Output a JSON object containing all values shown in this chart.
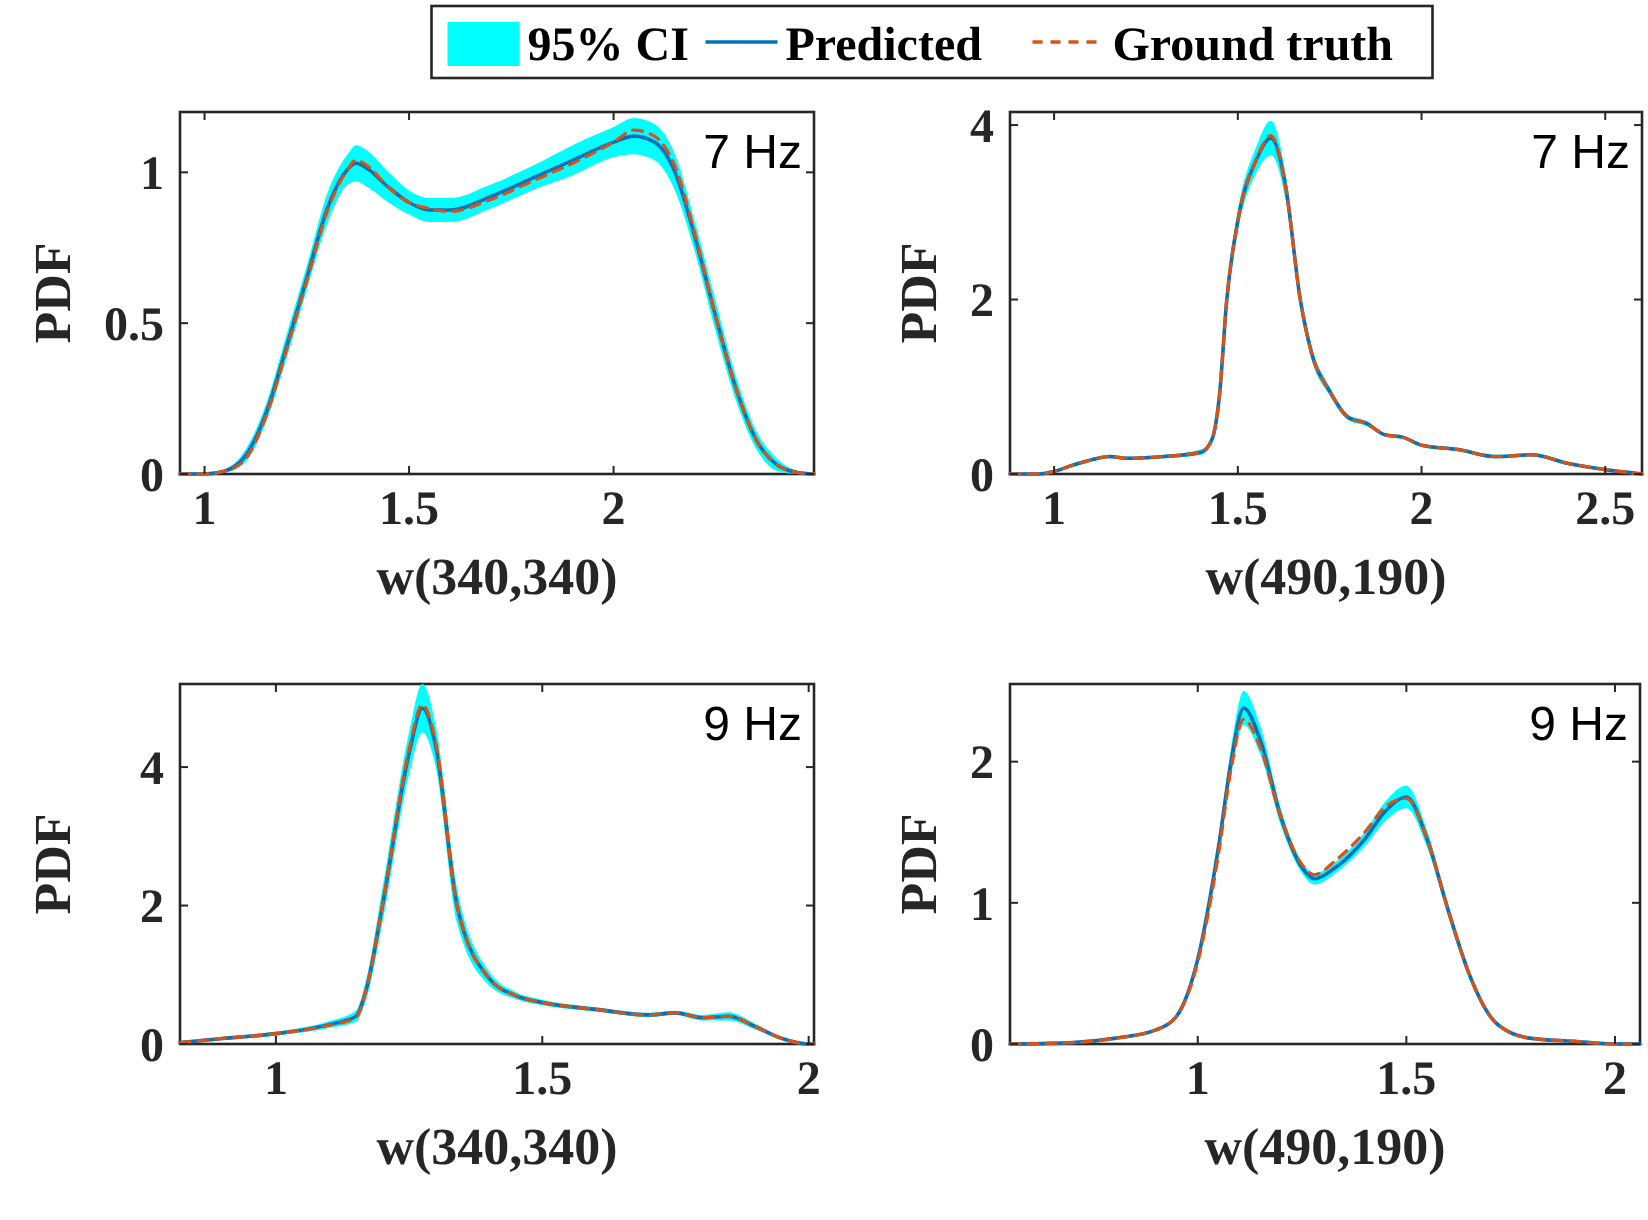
{
  "chart_data": [
    {
      "type": "line",
      "xlabel": "w(340,340)",
      "ylabel": "PDF",
      "annotations": [
        "7 Hz"
      ],
      "legend": "top",
      "legend_title": "95% CI",
      "xlim": [
        0.94,
        2.49
      ],
      "ylim": [
        0,
        1.2
      ],
      "xticks": [
        1,
        1.5,
        2
      ],
      "yticks": [
        0,
        0.5,
        1
      ],
      "x": [
        0.94,
        1.0,
        1.05,
        1.1,
        1.15,
        1.2,
        1.25,
        1.3,
        1.35,
        1.37,
        1.4,
        1.45,
        1.5,
        1.55,
        1.6,
        1.7,
        1.8,
        1.9,
        2.0,
        2.05,
        2.1,
        2.15,
        2.2,
        2.25,
        2.3,
        2.35,
        2.4,
        2.45,
        2.49
      ],
      "series": [
        {
          "name": "Predicted",
          "type": "line",
          "color": "#0072bd",
          "line_style": "solid",
          "values": [
            0,
            0,
            0.01,
            0.06,
            0.2,
            0.42,
            0.65,
            0.88,
            1.01,
            1.03,
            1.01,
            0.95,
            0.9,
            0.875,
            0.875,
            0.92,
            0.98,
            1.04,
            1.1,
            1.12,
            1.1,
            1.0,
            0.78,
            0.52,
            0.28,
            0.11,
            0.03,
            0.005,
            0
          ],
          "lower": [
            0,
            0,
            0.005,
            0.04,
            0.17,
            0.38,
            0.61,
            0.83,
            0.96,
            0.97,
            0.95,
            0.9,
            0.86,
            0.835,
            0.835,
            0.88,
            0.94,
            0.99,
            1.05,
            1.06,
            1.04,
            0.94,
            0.73,
            0.47,
            0.24,
            0.08,
            0.01,
            0,
            0
          ],
          "upper": [
            0,
            0,
            0.015,
            0.08,
            0.23,
            0.46,
            0.69,
            0.93,
            1.06,
            1.09,
            1.07,
            1.0,
            0.94,
            0.915,
            0.915,
            0.96,
            1.02,
            1.09,
            1.15,
            1.18,
            1.16,
            1.06,
            0.83,
            0.57,
            0.32,
            0.14,
            0.05,
            0.01,
            0
          ]
        },
        {
          "name": "Ground truth",
          "type": "line",
          "color": "#d95319",
          "line_style": "dashed",
          "values": [
            0,
            0,
            0.01,
            0.05,
            0.19,
            0.41,
            0.64,
            0.87,
            1.01,
            1.04,
            1.02,
            0.95,
            0.9,
            0.88,
            0.87,
            0.91,
            0.97,
            1.03,
            1.1,
            1.14,
            1.12,
            1.02,
            0.79,
            0.52,
            0.28,
            0.11,
            0.03,
            0.005,
            0
          ]
        }
      ]
    },
    {
      "type": "line",
      "xlabel": "w(490,190)",
      "ylabel": "PDF",
      "annotations": [
        "7 Hz"
      ],
      "xlim": [
        0.88,
        2.6
      ],
      "ylim": [
        0,
        4.15
      ],
      "xticks": [
        1,
        1.5,
        2,
        2.5
      ],
      "yticks": [
        0,
        2,
        4
      ],
      "x": [
        0.88,
        0.95,
        1.0,
        1.05,
        1.1,
        1.15,
        1.2,
        1.3,
        1.4,
        1.43,
        1.45,
        1.47,
        1.5,
        1.55,
        1.59,
        1.63,
        1.67,
        1.7,
        1.75,
        1.8,
        1.85,
        1.9,
        1.95,
        2.0,
        2.1,
        2.2,
        2.3,
        2.4,
        2.5,
        2.6
      ],
      "series": [
        {
          "type": "line",
          "color": "#0072bd",
          "line_style": "solid",
          "values": [
            0,
            0,
            0.03,
            0.1,
            0.16,
            0.2,
            0.18,
            0.2,
            0.25,
            0.4,
            0.9,
            2.0,
            2.9,
            3.6,
            3.85,
            3.3,
            2.0,
            1.4,
            0.95,
            0.65,
            0.58,
            0.45,
            0.42,
            0.33,
            0.28,
            0.2,
            0.22,
            0.12,
            0.05,
            0
          ],
          "lower": [
            0,
            0,
            0.02,
            0.08,
            0.14,
            0.18,
            0.16,
            0.18,
            0.22,
            0.35,
            0.82,
            1.9,
            2.78,
            3.45,
            3.65,
            3.15,
            1.9,
            1.32,
            0.9,
            0.62,
            0.55,
            0.43,
            0.4,
            0.31,
            0.26,
            0.18,
            0.2,
            0.1,
            0.04,
            0
          ],
          "upper": [
            0,
            0,
            0.04,
            0.12,
            0.18,
            0.22,
            0.2,
            0.22,
            0.28,
            0.45,
            0.98,
            2.1,
            3.02,
            3.75,
            4.05,
            3.45,
            2.1,
            1.48,
            1.0,
            0.68,
            0.61,
            0.47,
            0.44,
            0.35,
            0.3,
            0.22,
            0.24,
            0.14,
            0.06,
            0
          ]
        },
        {
          "type": "line",
          "color": "#d95319",
          "line_style": "dashed",
          "values": [
            0,
            0,
            0.03,
            0.1,
            0.16,
            0.2,
            0.18,
            0.2,
            0.25,
            0.4,
            0.9,
            2.0,
            2.9,
            3.6,
            3.88,
            3.3,
            2.0,
            1.4,
            0.95,
            0.65,
            0.58,
            0.45,
            0.42,
            0.33,
            0.28,
            0.2,
            0.22,
            0.12,
            0.05,
            0
          ]
        }
      ]
    },
    {
      "type": "line",
      "xlabel": "w(340,340)",
      "ylabel": "PDF",
      "annotations": [
        "9 Hz"
      ],
      "xlim": [
        0.82,
        2.01
      ],
      "ylim": [
        0,
        5.2
      ],
      "xticks": [
        1,
        1.5,
        2
      ],
      "yticks": [
        0,
        2,
        4
      ],
      "x": [
        0.82,
        0.9,
        1.0,
        1.1,
        1.15,
        1.17,
        1.2,
        1.25,
        1.275,
        1.3,
        1.34,
        1.4,
        1.45,
        1.5,
        1.6,
        1.7,
        1.75,
        1.8,
        1.85,
        1.9,
        1.95,
        2.0,
        2.01
      ],
      "series": [
        {
          "type": "line",
          "color": "#0072bd",
          "line_style": "solid",
          "values": [
            0.02,
            0.08,
            0.15,
            0.28,
            0.4,
            0.8,
            2.0,
            4.2,
            4.85,
            4.3,
            2.0,
            0.95,
            0.7,
            0.6,
            0.5,
            0.42,
            0.45,
            0.38,
            0.4,
            0.25,
            0.08,
            0,
            0
          ],
          "lower": [
            0.01,
            0.06,
            0.12,
            0.23,
            0.32,
            0.65,
            1.75,
            3.9,
            4.5,
            4.0,
            1.75,
            0.85,
            0.65,
            0.56,
            0.47,
            0.39,
            0.42,
            0.34,
            0.34,
            0.21,
            0.06,
            0,
            0
          ],
          "upper": [
            0.03,
            0.1,
            0.18,
            0.33,
            0.48,
            0.95,
            2.25,
            4.5,
            5.2,
            4.6,
            2.25,
            1.05,
            0.75,
            0.64,
            0.53,
            0.45,
            0.48,
            0.42,
            0.46,
            0.29,
            0.1,
            0,
            0
          ]
        },
        {
          "type": "line",
          "color": "#d95319",
          "line_style": "dashed",
          "values": [
            0.02,
            0.08,
            0.15,
            0.27,
            0.38,
            0.8,
            2.0,
            4.25,
            4.9,
            4.35,
            2.0,
            0.95,
            0.7,
            0.6,
            0.5,
            0.42,
            0.45,
            0.38,
            0.4,
            0.25,
            0.08,
            0,
            0
          ]
        }
      ]
    },
    {
      "type": "line",
      "xlabel": "w(490,190)",
      "ylabel": "PDF",
      "annotations": [
        "9 Hz"
      ],
      "xlim": [
        0.55,
        2.06
      ],
      "ylim": [
        0,
        2.55
      ],
      "xticks": [
        1,
        1.5,
        2
      ],
      "yticks": [
        0,
        1,
        2
      ],
      "x": [
        0.55,
        0.7,
        0.8,
        0.9,
        0.95,
        1.0,
        1.05,
        1.08,
        1.11,
        1.15,
        1.2,
        1.25,
        1.28,
        1.33,
        1.4,
        1.45,
        1.5,
        1.55,
        1.6,
        1.65,
        1.7,
        1.75,
        1.8,
        1.9,
        2.0,
        2.06
      ],
      "series": [
        {
          "type": "line",
          "color": "#0072bd",
          "line_style": "solid",
          "values": [
            0,
            0.01,
            0.04,
            0.1,
            0.2,
            0.6,
            1.4,
            2.0,
            2.38,
            2.15,
            1.6,
            1.25,
            1.17,
            1.25,
            1.45,
            1.65,
            1.75,
            1.45,
            0.95,
            0.5,
            0.2,
            0.08,
            0.04,
            0.02,
            0,
            0
          ],
          "lower": [
            0,
            0.01,
            0.03,
            0.09,
            0.18,
            0.56,
            1.34,
            1.9,
            2.26,
            2.05,
            1.54,
            1.21,
            1.13,
            1.21,
            1.4,
            1.58,
            1.67,
            1.39,
            0.91,
            0.47,
            0.18,
            0.07,
            0.03,
            0.02,
            0,
            0
          ],
          "upper": [
            0,
            0.01,
            0.05,
            0.11,
            0.22,
            0.64,
            1.46,
            2.1,
            2.5,
            2.25,
            1.66,
            1.29,
            1.21,
            1.29,
            1.5,
            1.72,
            1.83,
            1.51,
            0.99,
            0.53,
            0.22,
            0.09,
            0.05,
            0.02,
            0,
            0
          ]
        },
        {
          "type": "line",
          "color": "#d95319",
          "line_style": "dashed",
          "values": [
            0,
            0.01,
            0.04,
            0.1,
            0.2,
            0.58,
            1.35,
            1.95,
            2.3,
            2.1,
            1.6,
            1.27,
            1.2,
            1.3,
            1.5,
            1.68,
            1.74,
            1.45,
            0.95,
            0.5,
            0.2,
            0.08,
            0.04,
            0.02,
            0,
            0
          ]
        }
      ]
    }
  ]
}
